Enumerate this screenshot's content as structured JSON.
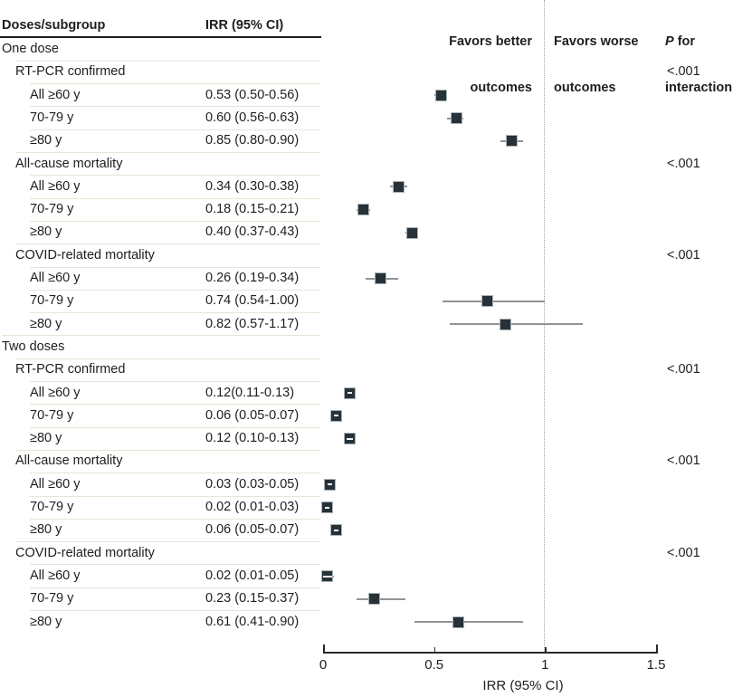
{
  "header": {
    "col1": "Doses/subgroup",
    "col2": "IRR (95% CI)",
    "favors_better_line1": "Favors better",
    "favors_better_line2": "outcomes",
    "favors_worse_line1": "Favors worse",
    "favors_worse_line2": "outcomes",
    "p_italic": "P",
    "p_rest": " for",
    "p_line2": "interaction"
  },
  "colors": {
    "marker_fill": "#263238",
    "marker_border": "#aab3b6",
    "ci_line": "#8f9496",
    "separator": "#e8e4d7",
    "reference_dotted": "#a3a3a3",
    "text": "#1e1e1e"
  },
  "chart_data": {
    "type": "forest",
    "xlabel": "IRR (95% CI)",
    "xtick_labels": [
      "0",
      "0.5",
      "1",
      "1.5"
    ],
    "xtick_values": [
      0,
      0.5,
      1,
      1.5
    ],
    "xlim": [
      0,
      1.5
    ],
    "reference_line": 1,
    "legend_left_of_reference": "Favors better outcomes",
    "legend_right_of_reference": "Favors worse outcomes",
    "p_column_header": "P for interaction",
    "rows": [
      {
        "label": "One dose",
        "indent": 0
      },
      {
        "label": "RT-PCR confirmed",
        "indent": 1,
        "p": "<.001"
      },
      {
        "label": "All ≥60 y",
        "indent": 2,
        "irr_text": "0.53 (0.50-0.56)",
        "est": 0.53,
        "lo": 0.5,
        "hi": 0.56
      },
      {
        "label": "70-79 y",
        "indent": 2,
        "irr_text": "0.60 (0.56-0.63)",
        "est": 0.6,
        "lo": 0.56,
        "hi": 0.63
      },
      {
        "label": "≥80 y",
        "indent": 2,
        "irr_text": "0.85 (0.80-0.90)",
        "est": 0.85,
        "lo": 0.8,
        "hi": 0.9
      },
      {
        "label": "All-cause mortality",
        "indent": 1,
        "p": "<.001"
      },
      {
        "label": "All ≥60 y",
        "indent": 2,
        "irr_text": "0.34 (0.30-0.38)",
        "est": 0.34,
        "lo": 0.3,
        "hi": 0.38
      },
      {
        "label": "70-79 y",
        "indent": 2,
        "irr_text": "0.18 (0.15-0.21)",
        "est": 0.18,
        "lo": 0.15,
        "hi": 0.21
      },
      {
        "label": "≥80 y",
        "indent": 2,
        "irr_text": "0.40 (0.37-0.43)",
        "est": 0.4,
        "lo": 0.37,
        "hi": 0.43
      },
      {
        "label": "COVID-related mortality",
        "indent": 1,
        "p": "<.001"
      },
      {
        "label": "All ≥60 y",
        "indent": 2,
        "irr_text": "0.26 (0.19-0.34)",
        "est": 0.26,
        "lo": 0.19,
        "hi": 0.34
      },
      {
        "label": "70-79 y",
        "indent": 2,
        "irr_text": "0.74 (0.54-1.00)",
        "est": 0.74,
        "lo": 0.54,
        "hi": 1.0
      },
      {
        "label": "≥80 y",
        "indent": 2,
        "irr_text": "0.82 (0.57-1.17)",
        "est": 0.82,
        "lo": 0.57,
        "hi": 1.17
      },
      {
        "label": "Two doses",
        "indent": 0
      },
      {
        "label": "RT-PCR confirmed",
        "indent": 1,
        "p": "<.001"
      },
      {
        "label": "All ≥60 y",
        "indent": 2,
        "irr_text": "0.12(0.11-0.13)",
        "est": 0.12,
        "lo": 0.11,
        "hi": 0.13
      },
      {
        "label": "70-79 y",
        "indent": 2,
        "irr_text": "0.06 (0.05-0.07)",
        "est": 0.06,
        "lo": 0.05,
        "hi": 0.07
      },
      {
        "label": "≥80 y",
        "indent": 2,
        "irr_text": "0.12 (0.10-0.13)",
        "est": 0.12,
        "lo": 0.1,
        "hi": 0.13
      },
      {
        "label": "All-cause mortality",
        "indent": 1,
        "p": "<.001"
      },
      {
        "label": "All ≥60 y",
        "indent": 2,
        "irr_text": "0.03 (0.03-0.05)",
        "est": 0.03,
        "lo": 0.03,
        "hi": 0.05
      },
      {
        "label": "70-79 y",
        "indent": 2,
        "irr_text": "0.02 (0.01-0.03)",
        "est": 0.02,
        "lo": 0.01,
        "hi": 0.03
      },
      {
        "label": "≥80 y",
        "indent": 2,
        "irr_text": "0.06 (0.05-0.07)",
        "est": 0.06,
        "lo": 0.05,
        "hi": 0.07
      },
      {
        "label": "COVID-related mortality",
        "indent": 1,
        "p": "<.001"
      },
      {
        "label": "All ≥60 y",
        "indent": 2,
        "irr_text": "0.02 (0.01-0.05)",
        "est": 0.02,
        "lo": 0.01,
        "hi": 0.05
      },
      {
        "label": "70-79 y",
        "indent": 2,
        "irr_text": "0.23 (0.15-0.37)",
        "est": 0.23,
        "lo": 0.15,
        "hi": 0.37
      },
      {
        "label": "≥80 y",
        "indent": 2,
        "irr_text": "0.61 (0.41-0.90)",
        "est": 0.61,
        "lo": 0.41,
        "hi": 0.9
      }
    ]
  }
}
